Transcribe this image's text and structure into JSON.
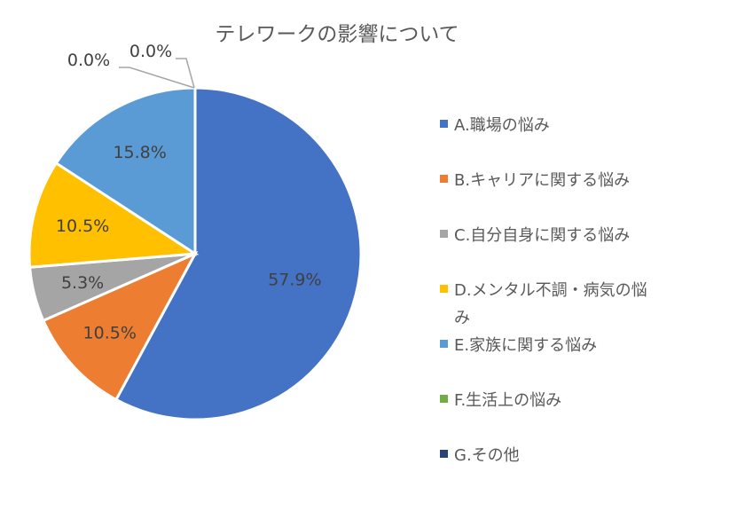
{
  "chart_data": {
    "type": "pie",
    "title": "テレワークの影響について",
    "legend_position": "right",
    "slices": [
      {
        "label": "A.職場の悩み",
        "value": 57.9,
        "value_label": "57.9%",
        "color": "#4472C4"
      },
      {
        "label": "B.キャリアに関する悩み",
        "value": 10.5,
        "value_label": "10.5%",
        "color": "#ED7D31"
      },
      {
        "label": "C.自分自身に関する悩み",
        "value": 5.3,
        "value_label": "5.3%",
        "color": "#A5A5A5"
      },
      {
        "label": "D.メンタル不調・病気の悩み",
        "value": 10.5,
        "value_label": "10.5%",
        "color": "#FFC000"
      },
      {
        "label": "E.家族に関する悩み",
        "value": 15.8,
        "value_label": "15.8%",
        "color": "#5B9BD5"
      },
      {
        "label": "F.生活上の悩み",
        "value": 0.0,
        "value_label": "0.0%",
        "color": "#70AD47"
      },
      {
        "label": "G.その他",
        "value": 0.0,
        "value_label": "0.0%",
        "color": "#264478"
      }
    ]
  }
}
